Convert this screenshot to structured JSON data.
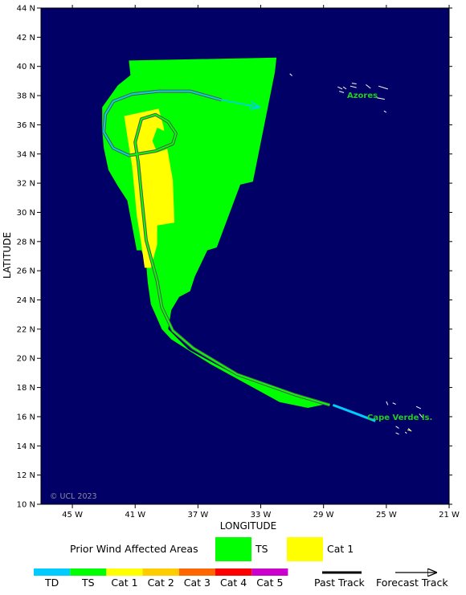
{
  "map": {
    "xlabel": "LONGITUDE",
    "ylabel": "LATITUDE",
    "lon_range": [
      -47,
      -21
    ],
    "lat_range": [
      10,
      44
    ],
    "lon_ticks": [
      "45 W",
      "41 W",
      "37 W",
      "33 W",
      "29 W",
      "25 W",
      "21 W"
    ],
    "lat_ticks": [
      "44 N",
      "42 N",
      "40 N",
      "38 N",
      "36 N",
      "34 N",
      "32 N",
      "30 N",
      "28 N",
      "26 N",
      "24 N",
      "22 N",
      "20 N",
      "18 N",
      "16 N",
      "14 N",
      "12 N",
      "10 N"
    ],
    "credit": "© UCL 2023",
    "places": [
      {
        "name": "Azores",
        "lon": -27.7,
        "lat": 38.0
      },
      {
        "name": "Cape Verde Is.",
        "lon": -23.4,
        "lat": 15.8
      }
    ],
    "colors": {
      "ocean": "#000066",
      "TD": "#00ccff",
      "TS": "#00ff00",
      "Cat 1": "#ffff00",
      "Cat 2": "#ffcc00",
      "Cat 3": "#ff6600",
      "Cat 4": "#ff0000",
      "Cat 5": "#cc00cc"
    },
    "ts_area": [
      [
        -41.4,
        40.4
      ],
      [
        -32.0,
        40.6
      ],
      [
        -32.1,
        39.6
      ],
      [
        -33.5,
        32.1
      ],
      [
        -34.3,
        31.9
      ],
      [
        -35.8,
        27.6
      ],
      [
        -36.4,
        27.4
      ],
      [
        -37.2,
        25.6
      ],
      [
        -37.5,
        24.6
      ],
      [
        -38.2,
        24.2
      ],
      [
        -38.7,
        23.3
      ],
      [
        -38.9,
        22.0
      ],
      [
        -37.6,
        20.6
      ],
      [
        -34.5,
        18.8
      ],
      [
        -30.9,
        17.5
      ],
      [
        -29.5,
        17.2
      ],
      [
        -28.7,
        16.9
      ],
      [
        -30.0,
        16.6
      ],
      [
        -31.8,
        17.0
      ],
      [
        -36.2,
        19.6
      ],
      [
        -38.7,
        21.3
      ],
      [
        -39.3,
        22.0
      ],
      [
        -40.0,
        23.7
      ],
      [
        -40.2,
        25.2
      ],
      [
        -40.3,
        26.5
      ],
      [
        -40.6,
        27.4
      ],
      [
        -40.9,
        27.4
      ],
      [
        -41.5,
        30.8
      ],
      [
        -42.1,
        31.8
      ],
      [
        -42.7,
        32.9
      ],
      [
        -43.0,
        34.4
      ],
      [
        -43.1,
        35.6
      ],
      [
        -43.1,
        37.2
      ],
      [
        -42.1,
        38.7
      ],
      [
        -41.3,
        39.4
      ],
      [
        -41.4,
        40.4
      ]
    ],
    "cat1_area": [
      [
        -41.7,
        36.6
      ],
      [
        -39.5,
        37.1
      ],
      [
        -39.2,
        35.9
      ],
      [
        -38.6,
        32.2
      ],
      [
        -38.5,
        29.3
      ],
      [
        -39.6,
        29.1
      ],
      [
        -39.6,
        27.8
      ],
      [
        -40.0,
        26.2
      ],
      [
        -40.4,
        26.2
      ],
      [
        -40.6,
        27.8
      ],
      [
        -40.9,
        29.8
      ],
      [
        -41.0,
        31.0
      ],
      [
        -41.2,
        33.2
      ],
      [
        -41.5,
        35.2
      ],
      [
        -41.7,
        36.6
      ]
    ],
    "cat1_hole": [
      [
        -39.6,
        35.8
      ],
      [
        -38.8,
        35.4
      ],
      [
        -38.8,
        34.4
      ],
      [
        -39.6,
        34.1
      ],
      [
        -39.9,
        34.9
      ],
      [
        -39.6,
        35.8
      ]
    ],
    "past_track": [
      [
        -28.6,
        16.8
      ],
      [
        -30.8,
        17.5
      ],
      [
        -34.5,
        18.9
      ],
      [
        -37.3,
        20.7
      ],
      [
        -38.6,
        21.9
      ],
      [
        -39.3,
        23.5
      ],
      [
        -39.6,
        25.3
      ],
      [
        -39.9,
        26.5
      ],
      [
        -40.3,
        28.1
      ],
      [
        -40.6,
        31.2
      ],
      [
        -40.8,
        33.4
      ],
      [
        -41.0,
        34.8
      ],
      [
        -40.6,
        36.4
      ],
      [
        -39.7,
        36.7
      ],
      [
        -38.9,
        36.2
      ],
      [
        -38.4,
        35.4
      ],
      [
        -38.6,
        34.7
      ],
      [
        -39.7,
        34.2
      ],
      [
        -41.4,
        33.9
      ],
      [
        -42.4,
        34.4
      ],
      [
        -43.0,
        35.5
      ],
      [
        -42.9,
        36.7
      ],
      [
        -42.4,
        37.6
      ],
      [
        -41.2,
        38.1
      ],
      [
        -39.5,
        38.3
      ],
      [
        -37.5,
        38.3
      ],
      [
        -35.5,
        37.7
      ]
    ],
    "td_track": [
      [
        -25.7,
        15.7
      ],
      [
        -26.9,
        16.2
      ],
      [
        -27.9,
        16.6
      ],
      [
        -28.4,
        16.8
      ]
    ],
    "forecast_track": [
      [
        -35.5,
        37.7
      ],
      [
        -33.1,
        37.2
      ]
    ],
    "coast_segments": [
      [
        [
          -25.5,
          38.65
        ],
        [
          -24.9,
          38.45
        ]
      ],
      [
        [
          -26.3,
          38.75
        ],
        [
          -26.0,
          38.5
        ]
      ],
      [
        [
          -27.3,
          38.65
        ],
        [
          -26.9,
          38.55
        ]
      ],
      [
        [
          -27.75,
          38.6
        ],
        [
          -27.55,
          38.45
        ]
      ],
      [
        [
          -27.2,
          38.85
        ],
        [
          -26.9,
          38.8
        ]
      ],
      [
        [
          -28.1,
          38.6
        ],
        [
          -27.8,
          38.45
        ]
      ],
      [
        [
          -28.0,
          38.3
        ],
        [
          -27.7,
          38.2
        ]
      ],
      [
        [
          -31.15,
          39.5
        ],
        [
          -31.0,
          39.35
        ]
      ],
      [
        [
          -25.6,
          37.85
        ],
        [
          -25.1,
          37.75
        ]
      ],
      [
        [
          -25.15,
          36.95
        ],
        [
          -25.0,
          36.85
        ]
      ],
      [
        [
          -25.0,
          17.05
        ],
        [
          -24.9,
          16.8
        ]
      ],
      [
        [
          -24.6,
          16.95
        ],
        [
          -24.4,
          16.85
        ]
      ],
      [
        [
          -23.1,
          16.7
        ],
        [
          -22.8,
          16.55
        ]
      ],
      [
        [
          -22.9,
          16.2
        ],
        [
          -22.7,
          15.95
        ]
      ],
      [
        [
          -24.4,
          15.35
        ],
        [
          -24.2,
          15.2
        ]
      ],
      [
        [
          -24.4,
          14.9
        ],
        [
          -24.2,
          14.8
        ]
      ],
      [
        [
          -23.8,
          14.95
        ],
        [
          -23.7,
          14.85
        ]
      ],
      [
        [
          -23.6,
          15.2
        ],
        [
          -23.4,
          15.0
        ]
      ]
    ],
    "cat1_islands": [
      [
        -23.65,
        15.1
      ],
      [
        -23.45,
        15.05
      ]
    ]
  },
  "legend": {
    "prior_title": "Prior Wind Affected Areas",
    "prior_items": [
      {
        "label": "TS",
        "color": "#00ff00"
      },
      {
        "label": "Cat 1",
        "color": "#ffff00"
      }
    ],
    "scale": [
      {
        "label": "TD",
        "color": "#00ccff"
      },
      {
        "label": "TS",
        "color": "#00ff00"
      },
      {
        "label": "Cat 1",
        "color": "#ffff00"
      },
      {
        "label": "Cat 2",
        "color": "#ffcc00"
      },
      {
        "label": "Cat 3",
        "color": "#ff6600"
      },
      {
        "label": "Cat 4",
        "color": "#ff0000"
      },
      {
        "label": "Cat 5",
        "color": "#cc00cc"
      }
    ],
    "past_track_label": "Past Track",
    "forecast_track_label": "Forecast Track"
  }
}
